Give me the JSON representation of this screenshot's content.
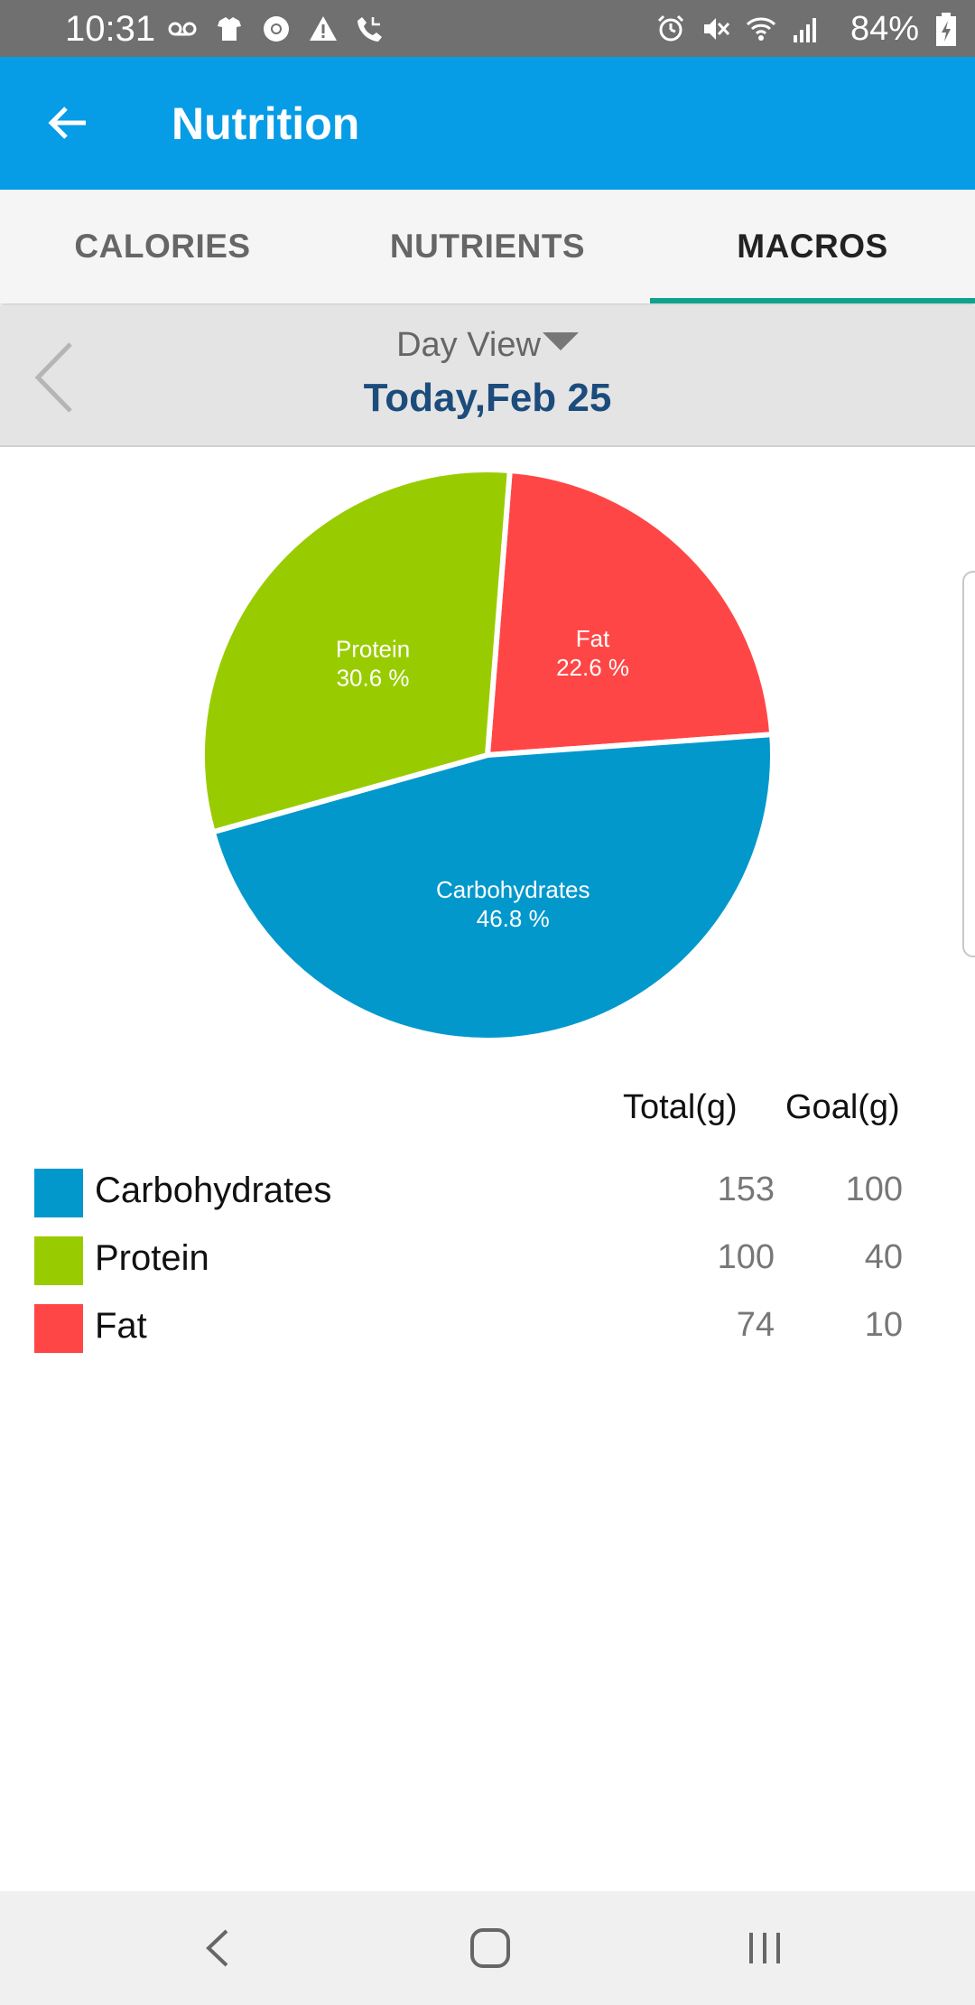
{
  "status_bar": {
    "time": "10:31",
    "battery": "84%"
  },
  "app_bar": {
    "title": "Nutrition"
  },
  "tabs": [
    {
      "label": "CALORIES"
    },
    {
      "label": "NUTRIENTS"
    },
    {
      "label": "MACROS"
    }
  ],
  "date_bar": {
    "view": "Day View",
    "date": "Today,Feb 25"
  },
  "table": {
    "total_header": "Total(g)",
    "goal_header": "Goal(g)"
  },
  "macros": [
    {
      "name": "Carbohydrates",
      "total": "153",
      "goal": "100",
      "color": "#0398cc"
    },
    {
      "name": "Protein",
      "total": "100",
      "goal": "40",
      "color": "#99cc00"
    },
    {
      "name": "Fat",
      "total": "74",
      "goal": "10",
      "color": "#ff4646"
    }
  ],
  "chart_data": {
    "type": "pie",
    "slices": [
      {
        "label": "Fat",
        "value": 22.6,
        "value_label": "22.6 %",
        "color": "#ff4646"
      },
      {
        "label": "Carbohydrates",
        "value": 46.8,
        "value_label": "46.8 %",
        "color": "#0398cc"
      },
      {
        "label": "Protein",
        "value": 30.6,
        "value_label": "30.6 %",
        "color": "#99cc00"
      }
    ]
  }
}
